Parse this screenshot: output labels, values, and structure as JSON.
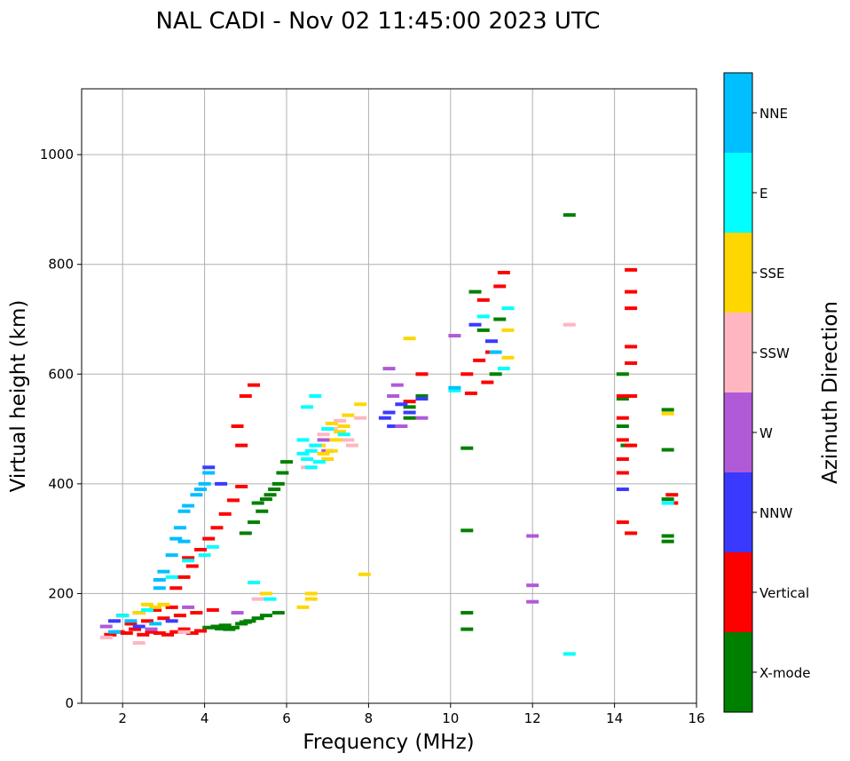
{
  "chart_data": {
    "type": "scatter",
    "title": "NAL CADI - Nov 02 11:45:00 2023 UTC",
    "xlabel": "Frequency (MHz)",
    "ylabel": "Virtual height (km)",
    "xlim": [
      1,
      16
    ],
    "ylim": [
      0,
      1120
    ],
    "xticks": [
      2,
      4,
      6,
      8,
      10,
      12,
      14,
      16
    ],
    "yticks": [
      0,
      200,
      400,
      600,
      800,
      1000
    ],
    "grid": true,
    "colorbar": {
      "label": "Azimuth Direction",
      "categories": [
        "X-mode",
        "Vertical",
        "NNW",
        "W",
        "SSW",
        "SSE",
        "E",
        "NNE"
      ],
      "colors": [
        "#008000",
        "#ff0000",
        "#3a3aff",
        "#b05ad8",
        "#ffb6c1",
        "#ffd700",
        "#00ffff",
        "#00bfff"
      ]
    },
    "series": [
      {
        "name": "X-mode",
        "color": "#008000",
        "points": [
          [
            4.1,
            138
          ],
          [
            4.3,
            140
          ],
          [
            4.5,
            142
          ],
          [
            4.7,
            138
          ],
          [
            4.9,
            145
          ],
          [
            5.1,
            150
          ],
          [
            5.3,
            155
          ],
          [
            5.5,
            160
          ],
          [
            5.8,
            165
          ],
          [
            4.4,
            136
          ],
          [
            4.6,
            135
          ],
          [
            5.0,
            148
          ],
          [
            5.0,
            310
          ],
          [
            5.2,
            330
          ],
          [
            5.4,
            350
          ],
          [
            5.6,
            380
          ],
          [
            5.8,
            400
          ],
          [
            5.9,
            420
          ],
          [
            6.0,
            440
          ],
          [
            5.3,
            365
          ],
          [
            5.7,
            390
          ],
          [
            5.5,
            372
          ],
          [
            9.0,
            520
          ],
          [
            9.0,
            540
          ],
          [
            9.3,
            560
          ],
          [
            10.4,
            465
          ],
          [
            10.4,
            315
          ],
          [
            10.4,
            165
          ],
          [
            10.4,
            135
          ],
          [
            10.6,
            750
          ],
          [
            10.8,
            680
          ],
          [
            11.2,
            700
          ],
          [
            11.1,
            600
          ],
          [
            12.9,
            890
          ],
          [
            14.2,
            600
          ],
          [
            14.2,
            555
          ],
          [
            14.2,
            505
          ],
          [
            14.3,
            470
          ],
          [
            15.3,
            535
          ],
          [
            15.3,
            462
          ],
          [
            15.3,
            305
          ],
          [
            15.3,
            295
          ],
          [
            15.3,
            372
          ]
        ]
      },
      {
        "name": "Vertical",
        "color": "#ff0000",
        "points": [
          [
            1.7,
            125
          ],
          [
            1.9,
            130
          ],
          [
            2.1,
            128
          ],
          [
            2.3,
            135
          ],
          [
            2.5,
            125
          ],
          [
            2.7,
            130
          ],
          [
            2.9,
            128
          ],
          [
            3.1,
            125
          ],
          [
            3.3,
            130
          ],
          [
            3.5,
            135
          ],
          [
            3.7,
            128
          ],
          [
            3.9,
            132
          ],
          [
            2.2,
            145
          ],
          [
            2.6,
            150
          ],
          [
            3.0,
            155
          ],
          [
            3.4,
            160
          ],
          [
            3.8,
            165
          ],
          [
            4.2,
            170
          ],
          [
            2.0,
            160
          ],
          [
            2.4,
            165
          ],
          [
            2.8,
            170
          ],
          [
            3.2,
            175
          ],
          [
            3.3,
            210
          ],
          [
            3.5,
            230
          ],
          [
            3.7,
            250
          ],
          [
            3.9,
            280
          ],
          [
            4.1,
            300
          ],
          [
            4.3,
            320
          ],
          [
            4.5,
            345
          ],
          [
            4.7,
            370
          ],
          [
            4.9,
            395
          ],
          [
            3.6,
            265
          ],
          [
            4.8,
            505
          ],
          [
            5.0,
            560
          ],
          [
            5.2,
            580
          ],
          [
            4.9,
            470
          ],
          [
            9.0,
            550
          ],
          [
            9.3,
            600
          ],
          [
            10.4,
            600
          ],
          [
            10.5,
            565
          ],
          [
            10.7,
            625
          ],
          [
            10.9,
            585
          ],
          [
            11.2,
            760
          ],
          [
            11.3,
            785
          ],
          [
            11.0,
            640
          ],
          [
            10.8,
            735
          ],
          [
            14.2,
            560
          ],
          [
            14.2,
            520
          ],
          [
            14.2,
            480
          ],
          [
            14.2,
            445
          ],
          [
            14.2,
            420
          ],
          [
            14.2,
            330
          ],
          [
            14.4,
            750
          ],
          [
            14.4,
            720
          ],
          [
            14.4,
            650
          ],
          [
            14.4,
            620
          ],
          [
            14.4,
            790
          ],
          [
            14.4,
            560
          ],
          [
            14.4,
            470
          ],
          [
            14.4,
            310
          ],
          [
            15.4,
            380
          ],
          [
            15.4,
            365
          ]
        ]
      },
      {
        "name": "NNW",
        "color": "#3a3aff",
        "points": [
          [
            1.8,
            150
          ],
          [
            2.4,
            140
          ],
          [
            3.2,
            150
          ],
          [
            4.1,
            430
          ],
          [
            4.4,
            400
          ],
          [
            8.5,
            530
          ],
          [
            8.6,
            505
          ],
          [
            8.4,
            520
          ],
          [
            8.8,
            545
          ],
          [
            9.0,
            530
          ],
          [
            9.3,
            555
          ],
          [
            10.6,
            690
          ],
          [
            11.0,
            660
          ],
          [
            14.2,
            390
          ]
        ]
      },
      {
        "name": "W",
        "color": "#b05ad8",
        "points": [
          [
            1.6,
            140
          ],
          [
            2.7,
            135
          ],
          [
            3.6,
            175
          ],
          [
            4.8,
            165
          ],
          [
            6.9,
            480
          ],
          [
            7.0,
            460
          ],
          [
            8.5,
            610
          ],
          [
            8.7,
            580
          ],
          [
            8.6,
            560
          ],
          [
            8.8,
            505
          ],
          [
            9.3,
            520
          ],
          [
            10.1,
            670
          ],
          [
            12.0,
            305
          ],
          [
            12.0,
            215
          ],
          [
            12.0,
            185
          ]
        ]
      },
      {
        "name": "SSW",
        "color": "#ffb6c1",
        "points": [
          [
            1.6,
            120
          ],
          [
            2.4,
            110
          ],
          [
            3.5,
            130
          ],
          [
            5.3,
            190
          ],
          [
            6.5,
            430
          ],
          [
            6.7,
            470
          ],
          [
            6.9,
            490
          ],
          [
            7.1,
            500
          ],
          [
            7.3,
            515
          ],
          [
            7.5,
            480
          ],
          [
            7.6,
            470
          ],
          [
            7.8,
            520
          ],
          [
            12.9,
            690
          ]
        ]
      },
      {
        "name": "SSE",
        "color": "#ffd700",
        "points": [
          [
            2.4,
            165
          ],
          [
            2.6,
            180
          ],
          [
            2.8,
            175
          ],
          [
            3.0,
            180
          ],
          [
            5.5,
            200
          ],
          [
            6.4,
            175
          ],
          [
            6.6,
            190
          ],
          [
            6.6,
            200
          ],
          [
            6.8,
            470
          ],
          [
            6.9,
            455
          ],
          [
            7.0,
            445
          ],
          [
            7.1,
            460
          ],
          [
            7.2,
            480
          ],
          [
            7.3,
            495
          ],
          [
            7.1,
            510
          ],
          [
            7.4,
            505
          ],
          [
            7.5,
            525
          ],
          [
            7.8,
            545
          ],
          [
            7.9,
            235
          ],
          [
            9.0,
            665
          ],
          [
            11.4,
            630
          ],
          [
            11.4,
            680
          ],
          [
            15.3,
            528
          ]
        ]
      },
      {
        "name": "E",
        "color": "#00ffff",
        "points": [
          [
            2.0,
            160
          ],
          [
            2.6,
            170
          ],
          [
            3.2,
            230
          ],
          [
            3.6,
            260
          ],
          [
            4.0,
            270
          ],
          [
            4.2,
            285
          ],
          [
            5.2,
            220
          ],
          [
            5.6,
            190
          ],
          [
            6.4,
            455
          ],
          [
            6.5,
            445
          ],
          [
            6.6,
            460
          ],
          [
            6.7,
            470
          ],
          [
            6.8,
            440
          ],
          [
            6.6,
            430
          ],
          [
            6.4,
            480
          ],
          [
            6.5,
            540
          ],
          [
            6.7,
            560
          ],
          [
            7.0,
            500
          ],
          [
            7.4,
            490
          ],
          [
            10.1,
            570
          ],
          [
            10.8,
            705
          ],
          [
            11.4,
            720
          ],
          [
            11.3,
            610
          ],
          [
            12.9,
            90
          ],
          [
            15.3,
            365
          ]
        ]
      },
      {
        "name": "NNE",
        "color": "#00bfff",
        "points": [
          [
            1.8,
            130
          ],
          [
            2.2,
            150
          ],
          [
            2.8,
            145
          ],
          [
            2.9,
            210
          ],
          [
            3.0,
            240
          ],
          [
            3.2,
            270
          ],
          [
            3.3,
            300
          ],
          [
            3.4,
            320
          ],
          [
            3.5,
            350
          ],
          [
            3.6,
            360
          ],
          [
            3.8,
            380
          ],
          [
            3.9,
            390
          ],
          [
            4.0,
            400
          ],
          [
            4.1,
            420
          ],
          [
            3.5,
            295
          ],
          [
            2.9,
            225
          ],
          [
            10.1,
            575
          ],
          [
            11.1,
            640
          ]
        ]
      }
    ]
  }
}
